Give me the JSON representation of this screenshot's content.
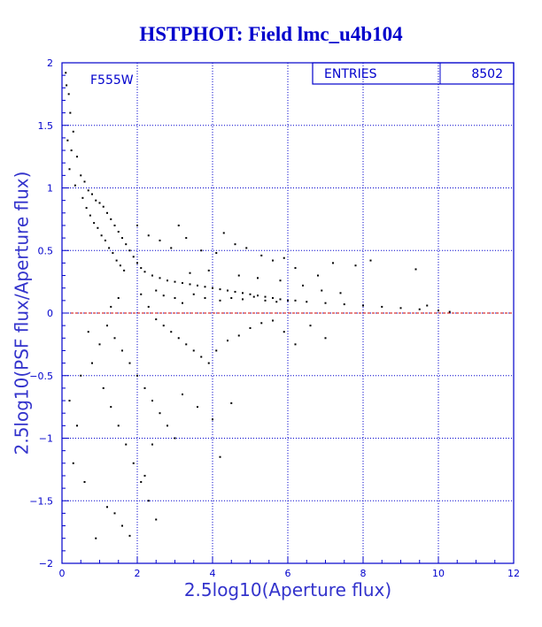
{
  "chart_data": {
    "type": "scatter",
    "title": "HSTPHOT: Field lmc_u4b104",
    "xlabel": "2.5log10(Aperture flux)",
    "ylabel": "2.5log10(PSF flux/Aperture flux)",
    "xlim": [
      0,
      12
    ],
    "ylim": [
      -2,
      2
    ],
    "x_ticks": [
      0,
      2,
      4,
      6,
      8,
      10,
      12
    ],
    "y_ticks": [
      -2,
      -1.5,
      -1,
      -0.5,
      0,
      0.5,
      1,
      1.5,
      2
    ],
    "filter_label": "F555W",
    "stats": {
      "label": "ENTRIES",
      "value": "8502"
    },
    "reference_line": {
      "y": 0,
      "color": "#cc0000",
      "style": "dashed"
    },
    "grid": true,
    "colors": {
      "axes": "#0000cc",
      "grid": "#0000cc",
      "points": "#000000",
      "title": "#0000cc",
      "labels": "#3333cc"
    },
    "points": [
      [
        0.1,
        1.92
      ],
      [
        0.12,
        1.82
      ],
      [
        0.18,
        1.75
      ],
      [
        0.22,
        1.6
      ],
      [
        0.3,
        1.45
      ],
      [
        0.15,
        1.38
      ],
      [
        0.25,
        1.3
      ],
      [
        0.4,
        1.25
      ],
      [
        0.2,
        1.15
      ],
      [
        0.5,
        1.1
      ],
      [
        0.6,
        1.05
      ],
      [
        0.35,
        1.02
      ],
      [
        0.7,
        0.98
      ],
      [
        0.8,
        0.95
      ],
      [
        0.55,
        0.92
      ],
      [
        0.9,
        0.9
      ],
      [
        1.0,
        0.88
      ],
      [
        1.1,
        0.85
      ],
      [
        0.65,
        0.84
      ],
      [
        1.2,
        0.8
      ],
      [
        0.75,
        0.78
      ],
      [
        1.3,
        0.75
      ],
      [
        0.85,
        0.72
      ],
      [
        1.4,
        0.7
      ],
      [
        0.95,
        0.68
      ],
      [
        1.5,
        0.65
      ],
      [
        1.05,
        0.62
      ],
      [
        1.6,
        0.6
      ],
      [
        1.15,
        0.58
      ],
      [
        1.7,
        0.55
      ],
      [
        1.25,
        0.52
      ],
      [
        1.8,
        0.5
      ],
      [
        1.35,
        0.48
      ],
      [
        1.9,
        0.45
      ],
      [
        1.45,
        0.42
      ],
      [
        2.0,
        0.4
      ],
      [
        1.55,
        0.38
      ],
      [
        2.1,
        0.36
      ],
      [
        1.65,
        0.34
      ],
      [
        2.2,
        0.33
      ],
      [
        2.4,
        0.3
      ],
      [
        2.6,
        0.28
      ],
      [
        2.8,
        0.26
      ],
      [
        3.0,
        0.25
      ],
      [
        3.2,
        0.24
      ],
      [
        3.4,
        0.23
      ],
      [
        3.6,
        0.22
      ],
      [
        3.8,
        0.21
      ],
      [
        4.0,
        0.2
      ],
      [
        4.2,
        0.19
      ],
      [
        4.4,
        0.18
      ],
      [
        4.6,
        0.17
      ],
      [
        4.8,
        0.16
      ],
      [
        5.0,
        0.15
      ],
      [
        5.2,
        0.14
      ],
      [
        5.4,
        0.13
      ],
      [
        5.6,
        0.12
      ],
      [
        5.8,
        0.11
      ],
      [
        6.0,
        0.1
      ],
      [
        6.2,
        0.1
      ],
      [
        6.5,
        0.09
      ],
      [
        7.0,
        0.08
      ],
      [
        7.5,
        0.07
      ],
      [
        8.0,
        0.06
      ],
      [
        8.5,
        0.05
      ],
      [
        9.0,
        0.04
      ],
      [
        9.5,
        0.03
      ],
      [
        10.0,
        0.02
      ],
      [
        10.3,
        0.01
      ],
      [
        9.7,
        0.06
      ],
      [
        9.4,
        0.35
      ],
      [
        8.2,
        0.42
      ],
      [
        7.8,
        0.38
      ],
      [
        7.2,
        0.4
      ],
      [
        6.8,
        0.3
      ],
      [
        6.2,
        0.36
      ],
      [
        5.9,
        0.44
      ],
      [
        5.3,
        0.46
      ],
      [
        4.9,
        0.52
      ],
      [
        4.6,
        0.55
      ],
      [
        4.1,
        0.48
      ],
      [
        3.7,
        0.5
      ],
      [
        3.3,
        0.6
      ],
      [
        2.9,
        0.52
      ],
      [
        2.6,
        0.58
      ],
      [
        2.3,
        0.62
      ],
      [
        2.0,
        0.7
      ],
      [
        3.1,
        0.7
      ],
      [
        4.3,
        0.64
      ],
      [
        5.6,
        0.42
      ],
      [
        2.1,
        0.15
      ],
      [
        2.3,
        0.05
      ],
      [
        2.5,
        -0.05
      ],
      [
        2.7,
        -0.1
      ],
      [
        2.9,
        -0.15
      ],
      [
        3.1,
        -0.2
      ],
      [
        3.3,
        -0.25
      ],
      [
        3.5,
        -0.3
      ],
      [
        3.7,
        -0.35
      ],
      [
        3.9,
        -0.4
      ],
      [
        4.1,
        -0.3
      ],
      [
        4.4,
        -0.22
      ],
      [
        4.7,
        -0.18
      ],
      [
        5.0,
        -0.12
      ],
      [
        5.3,
        -0.08
      ],
      [
        5.6,
        -0.06
      ],
      [
        5.9,
        -0.15
      ],
      [
        6.2,
        -0.25
      ],
      [
        6.6,
        -0.1
      ],
      [
        7.0,
        -0.2
      ],
      [
        1.2,
        -0.1
      ],
      [
        1.4,
        -0.2
      ],
      [
        1.6,
        -0.3
      ],
      [
        1.8,
        -0.4
      ],
      [
        2.0,
        -0.5
      ],
      [
        2.2,
        -0.6
      ],
      [
        2.4,
        -0.7
      ],
      [
        2.6,
        -0.8
      ],
      [
        2.8,
        -0.9
      ],
      [
        3.0,
        -1.0
      ],
      [
        1.1,
        -0.6
      ],
      [
        1.3,
        -0.75
      ],
      [
        1.5,
        -0.9
      ],
      [
        1.7,
        -1.05
      ],
      [
        1.9,
        -1.2
      ],
      [
        2.1,
        -1.35
      ],
      [
        2.3,
        -1.5
      ],
      [
        2.5,
        -1.65
      ],
      [
        1.2,
        -1.55
      ],
      [
        1.4,
        -1.6
      ],
      [
        1.6,
        -1.7
      ],
      [
        1.8,
        -1.78
      ],
      [
        0.9,
        -1.8
      ],
      [
        2.2,
        -1.3
      ],
      [
        2.4,
        -1.05
      ],
      [
        3.2,
        -0.65
      ],
      [
        3.6,
        -0.75
      ],
      [
        4.0,
        -0.85
      ],
      [
        4.2,
        -1.15
      ],
      [
        4.5,
        -0.72
      ],
      [
        0.5,
        -0.5
      ],
      [
        0.4,
        -0.9
      ],
      [
        0.3,
        -1.2
      ],
      [
        0.6,
        -1.35
      ],
      [
        0.2,
        -0.7
      ],
      [
        0.8,
        -0.4
      ],
      [
        1.0,
        -0.25
      ],
      [
        0.7,
        -0.15
      ],
      [
        1.3,
        0.05
      ],
      [
        1.5,
        0.12
      ],
      [
        3.5,
        0.15
      ],
      [
        3.8,
        0.12
      ],
      [
        4.2,
        0.1
      ],
      [
        4.5,
        0.12
      ],
      [
        4.8,
        0.11
      ],
      [
        5.1,
        0.13
      ],
      [
        5.4,
        0.1
      ],
      [
        5.7,
        0.09
      ],
      [
        3.2,
        0.08
      ],
      [
        3.0,
        0.12
      ],
      [
        2.7,
        0.14
      ],
      [
        2.5,
        0.18
      ],
      [
        3.4,
        0.32
      ],
      [
        3.9,
        0.34
      ],
      [
        4.7,
        0.3
      ],
      [
        5.2,
        0.28
      ],
      [
        5.8,
        0.26
      ],
      [
        6.4,
        0.22
      ],
      [
        6.9,
        0.18
      ],
      [
        7.4,
        0.16
      ]
    ]
  }
}
